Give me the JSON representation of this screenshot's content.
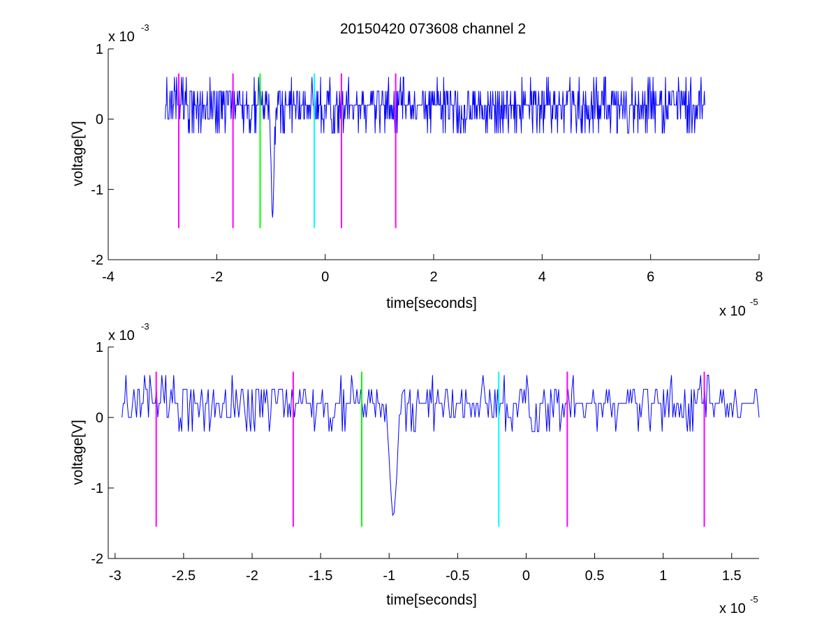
{
  "chart_data": [
    {
      "type": "line",
      "title": "20150420 073608 channel 2",
      "xlabel": "time[seconds]",
      "ylabel": "voltage[V]",
      "x_multiplier": "x 10",
      "x_exponent": "-5",
      "y_multiplier": "x 10",
      "y_exponent": "-3",
      "xlim": [
        -4,
        8
      ],
      "ylim": [
        -2,
        1
      ],
      "xticks": [
        -4,
        -2,
        0,
        2,
        4,
        6,
        8
      ],
      "xtick_labels": [
        "-4",
        "-2",
        "0",
        "2",
        "4",
        "6",
        "8"
      ],
      "yticks": [
        -2,
        -1,
        0,
        1
      ],
      "ytick_labels": [
        "-2",
        "-1",
        "0",
        "1"
      ],
      "grid": false,
      "signal": {
        "color": "#0000ff",
        "x_start": -2.95,
        "x_end": 7.0,
        "baseline": 0.15,
        "levels": [
          -0.2,
          0.0,
          0.2,
          0.4,
          0.6
        ],
        "spike": {
          "x": -0.97,
          "min": -1.4
        }
      },
      "markers": [
        {
          "x": -2.7,
          "color": "#ff00ff"
        },
        {
          "x": -1.7,
          "color": "#ff00ff"
        },
        {
          "x": -1.2,
          "color": "#00ff00"
        },
        {
          "x": -0.2,
          "color": "#00ffff"
        },
        {
          "x": 0.3,
          "color": "#ff00ff"
        },
        {
          "x": 1.3,
          "color": "#ff00ff"
        }
      ],
      "marker_range": [
        -1.55,
        0.65
      ]
    },
    {
      "type": "line",
      "title": "",
      "xlabel": "time[seconds]",
      "ylabel": "voltage[V]",
      "x_multiplier": "x 10",
      "x_exponent": "-5",
      "y_multiplier": "x 10",
      "y_exponent": "-3",
      "xlim": [
        -3.05,
        1.7
      ],
      "ylim": [
        -2,
        1
      ],
      "xticks": [
        -3,
        -2.5,
        -2,
        -1.5,
        -1,
        -0.5,
        0,
        0.5,
        1,
        1.5
      ],
      "xtick_labels": [
        "-3",
        "-2.5",
        "-2",
        "-1.5",
        "-1",
        "-0.5",
        "0",
        "0.5",
        "1",
        "1.5"
      ],
      "yticks": [
        -2,
        -1,
        0,
        1
      ],
      "ytick_labels": [
        "-2",
        "-1",
        "0",
        "1"
      ],
      "grid": false,
      "signal": {
        "color": "#0000ff",
        "x_start": -2.95,
        "x_end": 1.7,
        "baseline": 0.15,
        "levels": [
          -0.2,
          0.0,
          0.2,
          0.4,
          0.6
        ],
        "spike": {
          "x": -0.97,
          "min": -1.4
        }
      },
      "markers": [
        {
          "x": -2.7,
          "color": "#ff00ff"
        },
        {
          "x": -1.7,
          "color": "#ff00ff"
        },
        {
          "x": -1.2,
          "color": "#00ff00"
        },
        {
          "x": -0.2,
          "color": "#00ffff"
        },
        {
          "x": 0.3,
          "color": "#ff00ff"
        },
        {
          "x": 1.3,
          "color": "#ff00ff"
        }
      ],
      "marker_range": [
        -1.55,
        0.65
      ]
    }
  ]
}
